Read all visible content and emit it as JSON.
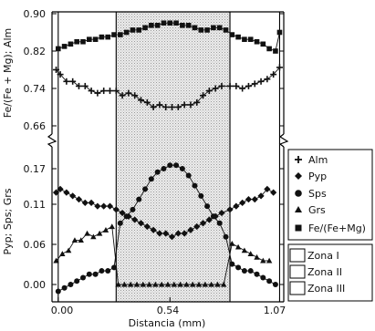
{
  "chart_data": {
    "type": "line",
    "xlabel": "Distancia (mm)",
    "x_ticks": [
      "0.00",
      "0.54",
      "1.07"
    ],
    "xlim": [
      -0.03,
      1.09
    ],
    "zone_bounds": [
      0.0,
      0.28,
      0.83,
      1.07
    ],
    "top_panel": {
      "ylabel": "Fe/(Fe + Mg); Alm",
      "y_ticks": [
        "0.90",
        "0.82",
        "0.74",
        "0.66"
      ],
      "ylim": [
        0.63,
        0.9
      ]
    },
    "bottom_panel": {
      "ylabel": "Pyp; Sps; Grs",
      "y_ticks": [
        "0.17",
        "0.11",
        "0.06",
        "0.00"
      ],
      "ylim": [
        -0.015,
        0.175
      ]
    },
    "series": [
      {
        "name": "Alm",
        "marker": "plus",
        "panel": "top",
        "x": [
          -0.01,
          0.01,
          0.04,
          0.07,
          0.1,
          0.13,
          0.16,
          0.19,
          0.22,
          0.25,
          0.28,
          0.31,
          0.34,
          0.37,
          0.4,
          0.43,
          0.46,
          0.49,
          0.52,
          0.55,
          0.58,
          0.61,
          0.64,
          0.67,
          0.7,
          0.73,
          0.76,
          0.79,
          0.83,
          0.86,
          0.89,
          0.92,
          0.95,
          0.98,
          1.01,
          1.04,
          1.07
        ],
        "values": [
          0.78,
          0.77,
          0.755,
          0.755,
          0.745,
          0.745,
          0.735,
          0.73,
          0.735,
          0.735,
          0.735,
          0.725,
          0.73,
          0.725,
          0.715,
          0.71,
          0.7,
          0.705,
          0.7,
          0.7,
          0.7,
          0.705,
          0.705,
          0.71,
          0.725,
          0.735,
          0.74,
          0.745,
          0.745,
          0.745,
          0.74,
          0.745,
          0.75,
          0.755,
          0.76,
          0.77,
          0.785
        ]
      },
      {
        "name": "Fe/(Fe+Mg)",
        "marker": "square",
        "panel": "top",
        "x": [
          0.0,
          0.03,
          0.06,
          0.09,
          0.12,
          0.15,
          0.18,
          0.21,
          0.24,
          0.27,
          0.3,
          0.33,
          0.36,
          0.39,
          0.42,
          0.45,
          0.48,
          0.51,
          0.54,
          0.57,
          0.6,
          0.63,
          0.66,
          0.69,
          0.72,
          0.75,
          0.78,
          0.81,
          0.84,
          0.87,
          0.9,
          0.93,
          0.96,
          0.99,
          1.02,
          1.05,
          1.07
        ],
        "values": [
          0.825,
          0.83,
          0.835,
          0.84,
          0.84,
          0.845,
          0.845,
          0.85,
          0.85,
          0.855,
          0.855,
          0.86,
          0.865,
          0.865,
          0.87,
          0.875,
          0.875,
          0.88,
          0.88,
          0.88,
          0.875,
          0.875,
          0.87,
          0.865,
          0.865,
          0.87,
          0.87,
          0.865,
          0.855,
          0.85,
          0.845,
          0.845,
          0.84,
          0.835,
          0.825,
          0.82,
          0.86
        ]
      },
      {
        "name": "Pyp",
        "marker": "diamond",
        "panel": "bottom",
        "x": [
          -0.01,
          0.01,
          0.04,
          0.07,
          0.1,
          0.13,
          0.16,
          0.19,
          0.22,
          0.25,
          0.28,
          0.31,
          0.34,
          0.37,
          0.4,
          0.43,
          0.46,
          0.49,
          0.52,
          0.55,
          0.58,
          0.61,
          0.64,
          0.67,
          0.7,
          0.73,
          0.76,
          0.79,
          0.83,
          0.86,
          0.89,
          0.92,
          0.95,
          0.98,
          1.01,
          1.04
        ],
        "values": [
          0.135,
          0.14,
          0.135,
          0.13,
          0.125,
          0.12,
          0.12,
          0.115,
          0.115,
          0.115,
          0.11,
          0.105,
          0.1,
          0.095,
          0.09,
          0.085,
          0.08,
          0.075,
          0.075,
          0.07,
          0.075,
          0.075,
          0.08,
          0.085,
          0.09,
          0.095,
          0.1,
          0.105,
          0.11,
          0.115,
          0.12,
          0.125,
          0.125,
          0.13,
          0.14,
          0.135
        ]
      },
      {
        "name": "Sps",
        "marker": "circle",
        "panel": "bottom",
        "x": [
          0.0,
          0.03,
          0.06,
          0.09,
          0.12,
          0.15,
          0.18,
          0.21,
          0.24,
          0.27,
          0.3,
          0.33,
          0.36,
          0.39,
          0.42,
          0.45,
          0.48,
          0.51,
          0.54,
          0.57,
          0.6,
          0.63,
          0.66,
          0.69,
          0.72,
          0.75,
          0.78,
          0.81,
          0.84,
          0.87,
          0.9,
          0.93,
          0.96,
          0.99,
          1.02,
          1.05
        ],
        "values": [
          -0.01,
          -0.005,
          0.0,
          0.005,
          0.01,
          0.015,
          0.015,
          0.02,
          0.02,
          0.025,
          0.09,
          0.1,
          0.11,
          0.125,
          0.14,
          0.155,
          0.165,
          0.17,
          0.175,
          0.175,
          0.17,
          0.16,
          0.145,
          0.13,
          0.115,
          0.1,
          0.09,
          0.07,
          0.03,
          0.025,
          0.02,
          0.02,
          0.015,
          0.01,
          0.005,
          0.0
        ]
      },
      {
        "name": "Grs",
        "marker": "triangle",
        "panel": "bottom",
        "x": [
          -0.01,
          0.02,
          0.05,
          0.08,
          0.11,
          0.14,
          0.17,
          0.2,
          0.23,
          0.26,
          0.29,
          0.32,
          0.35,
          0.38,
          0.41,
          0.44,
          0.47,
          0.5,
          0.53,
          0.56,
          0.59,
          0.62,
          0.65,
          0.68,
          0.71,
          0.74,
          0.77,
          0.8,
          0.84,
          0.87,
          0.9,
          0.93,
          0.96,
          0.99,
          1.02
        ],
        "values": [
          0.035,
          0.045,
          0.05,
          0.065,
          0.065,
          0.075,
          0.07,
          0.075,
          0.08,
          0.085,
          0.0,
          0.0,
          0.0,
          0.0,
          0.0,
          0.0,
          0.0,
          0.0,
          0.0,
          0.0,
          0.0,
          0.0,
          0.0,
          0.0,
          0.0,
          0.0,
          0.0,
          0.0,
          0.06,
          0.055,
          0.05,
          0.045,
          0.04,
          0.035,
          0.035
        ]
      }
    ],
    "zones": [
      "Zona I",
      "Zona II",
      "Zona III"
    ],
    "legend_position": "right"
  }
}
